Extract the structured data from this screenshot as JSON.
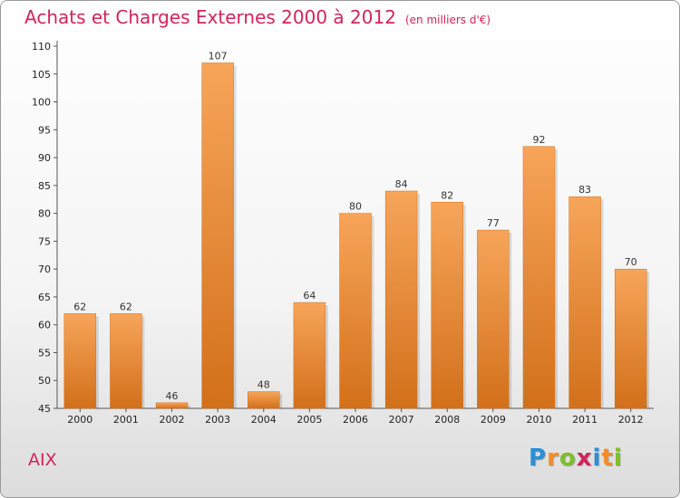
{
  "chart_data": {
    "type": "bar",
    "title": "Achats et Charges Externes 2000 à 2012",
    "subtitle": "(en milliers d'€)",
    "categories": [
      "2000",
      "2001",
      "2002",
      "2003",
      "2004",
      "2005",
      "2006",
      "2007",
      "2008",
      "2009",
      "2010",
      "2011",
      "2012"
    ],
    "values": [
      62,
      62,
      46,
      107,
      48,
      64,
      80,
      84,
      82,
      77,
      92,
      83,
      70
    ],
    "value_labels": [
      "62",
      "62",
      "46",
      "107",
      "48",
      "64",
      "80",
      "84",
      "82",
      "77",
      "92",
      "83",
      "70"
    ],
    "ylim": [
      45,
      110
    ],
    "yticks": [
      "45",
      "50",
      "55",
      "60",
      "65",
      "70",
      "75",
      "80",
      "85",
      "90",
      "95",
      "100",
      "105",
      "110"
    ],
    "grid": false,
    "legend": "none",
    "bar_color": "#f28c2a",
    "bar_color_light": "#f7a55a",
    "bar_color_dark": "#d2701a"
  },
  "commune": "AIX",
  "logo": {
    "letters": [
      "P",
      "r",
      "o",
      "x",
      "i",
      "t",
      "i"
    ],
    "colors": [
      "#2a8fd6",
      "#f28c2a",
      "#7cbf2a",
      "#d2245a",
      "#2a8fd6",
      "#f28c2a",
      "#7cbf2a"
    ]
  },
  "colors": {
    "title": "#d2245a",
    "axis": "#555555"
  }
}
